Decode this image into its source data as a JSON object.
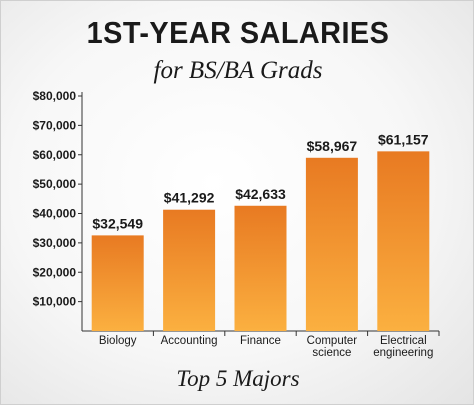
{
  "colors": {
    "bar_top": "#e87a22",
    "bar_bottom": "#fbb040",
    "text": "#1a1a1a",
    "axis": "#333333"
  },
  "chart_data": {
    "type": "bar",
    "title": "1ST-YEAR SALARIES",
    "subtitle": "for BS/BA Grads",
    "xlabel": "Top 5 Majors",
    "ylabel": "",
    "ylim": [
      0,
      80000
    ],
    "yticks": [
      "$10,000",
      "$20,000",
      "$30,000",
      "$40,000",
      "$50,000",
      "$60,000",
      "$70,000",
      "$80,000"
    ],
    "categories": [
      [
        "Biology"
      ],
      [
        "Accounting"
      ],
      [
        "Finance"
      ],
      [
        "Computer",
        "science"
      ],
      [
        "Electrical",
        "engineering"
      ]
    ],
    "values": [
      32549,
      41292,
      42633,
      58967,
      61157
    ],
    "value_labels": [
      "$32,549",
      "$41,292",
      "$42,633",
      "$58,967",
      "$61,157"
    ],
    "grid": false,
    "legend": "none"
  }
}
